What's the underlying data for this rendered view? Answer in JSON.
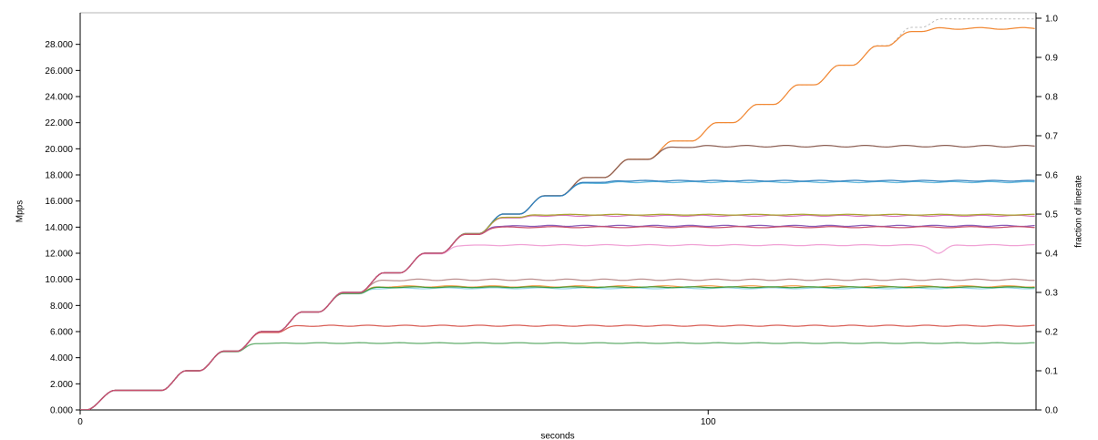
{
  "page": {
    "background": "#ffffff"
  },
  "axes": {
    "left_title": "Mpps",
    "bottom_title": "seconds",
    "right_title": "fraction of linerate"
  },
  "chart_data": {
    "type": "line",
    "title": "",
    "xlabel": "seconds",
    "ylabel_left": "Mpps",
    "ylabel_right": "fraction of linerate",
    "grid": false,
    "legend": "none",
    "x_range": [
      0,
      152.2
    ],
    "x_ticks": [
      {
        "v": 0,
        "label": "0"
      },
      {
        "v": 100,
        "label": "100"
      }
    ],
    "y_left_range": [
      0,
      30
    ],
    "y_left_ticks": [
      {
        "v": 0,
        "label": "0.000"
      },
      {
        "v": 2,
        "label": "2.000"
      },
      {
        "v": 4,
        "label": "4.000"
      },
      {
        "v": 6,
        "label": "6.000"
      },
      {
        "v": 8,
        "label": "8.000"
      },
      {
        "v": 10,
        "label": "10.000"
      },
      {
        "v": 12,
        "label": "12.000"
      },
      {
        "v": 14,
        "label": "14.000"
      },
      {
        "v": 16,
        "label": "16.000"
      },
      {
        "v": 18,
        "label": "18.000"
      },
      {
        "v": 20,
        "label": "20.000"
      },
      {
        "v": 22,
        "label": "22.000"
      },
      {
        "v": 24,
        "label": "24.000"
      },
      {
        "v": 26,
        "label": "26.000"
      },
      {
        "v": 28,
        "label": "28.000"
      }
    ],
    "y_right_range": [
      0,
      1
    ],
    "y_right_ticks": [
      {
        "v": 0.0,
        "label": "0.0"
      },
      {
        "v": 0.1,
        "label": "0.1"
      },
      {
        "v": 0.2,
        "label": "0.2"
      },
      {
        "v": 0.3,
        "label": "0.3"
      },
      {
        "v": 0.4,
        "label": "0.4"
      },
      {
        "v": 0.5,
        "label": "0.5"
      },
      {
        "v": 0.6,
        "label": "0.6"
      },
      {
        "v": 0.7,
        "label": "0.7"
      },
      {
        "v": 0.8,
        "label": "0.8"
      },
      {
        "v": 0.9,
        "label": "0.9"
      },
      {
        "v": 1.0,
        "label": "1.0"
      }
    ],
    "linerate_mpps": 30,
    "offered_load_steps": [
      [
        0,
        0
      ],
      [
        1,
        0
      ],
      [
        5.5,
        1.5
      ],
      [
        13,
        1.5
      ],
      [
        16.8,
        3.0
      ],
      [
        19,
        3.0
      ],
      [
        22.8,
        4.5
      ],
      [
        25,
        4.5
      ],
      [
        28.8,
        6.0
      ],
      [
        31.5,
        6.0
      ],
      [
        35.3,
        7.5
      ],
      [
        38,
        7.5
      ],
      [
        41.8,
        9.0
      ],
      [
        44.5,
        9.0
      ],
      [
        48.3,
        10.5
      ],
      [
        51,
        10.5
      ],
      [
        54.8,
        12.0
      ],
      [
        57.5,
        12.0
      ],
      [
        61.3,
        13.5
      ],
      [
        63.5,
        13.5
      ],
      [
        67.3,
        15.0
      ],
      [
        70,
        15.0
      ],
      [
        73.8,
        16.4
      ],
      [
        76.5,
        16.4
      ],
      [
        80.3,
        17.8
      ],
      [
        83.5,
        17.8
      ],
      [
        87.3,
        19.2
      ],
      [
        90.5,
        19.2
      ],
      [
        94.3,
        20.6
      ],
      [
        97.5,
        20.6
      ],
      [
        101.3,
        22.0
      ],
      [
        104,
        22.0
      ],
      [
        107.8,
        23.4
      ],
      [
        110.5,
        23.4
      ],
      [
        114.3,
        24.9
      ],
      [
        117,
        24.9
      ],
      [
        120.8,
        26.4
      ],
      [
        123,
        26.4
      ],
      [
        126.8,
        27.9
      ],
      [
        128.5,
        27.9
      ],
      [
        132.3,
        29.3
      ],
      [
        134,
        29.3
      ],
      [
        137,
        29.95
      ],
      [
        152.2,
        29.95
      ]
    ],
    "series": [
      {
        "name": "offered-load",
        "color": "#bdbdbd",
        "dash": true,
        "cap_mpps": null,
        "final_mpps": 29.95,
        "final_fraction": 0.998,
        "wobble": 0.0
      },
      {
        "name": "orange",
        "color": "#f28935",
        "dash": false,
        "cap_mpps": 29.35,
        "final_mpps": 29.3,
        "final_fraction": 0.978,
        "wobble": 0.13
      },
      {
        "name": "brown",
        "color": "#8d6055",
        "dash": false,
        "cap_mpps": 20.2,
        "final_mpps": 20.2,
        "final_fraction": 0.673,
        "wobble": 0.06
      },
      {
        "name": "light-blue",
        "color": "#64b9dd",
        "dash": false,
        "cap_mpps": 17.45,
        "final_mpps": 17.45,
        "final_fraction": 0.582,
        "wobble": 0.04
      },
      {
        "name": "blue",
        "color": "#2e7ebc",
        "dash": false,
        "cap_mpps": 17.55,
        "final_mpps": 17.55,
        "final_fraction": 0.585,
        "wobble": 0.03
      },
      {
        "name": "cyan",
        "color": "#93d4e4",
        "dash": false,
        "cap_mpps": 9.32,
        "final_mpps": 9.32,
        "final_fraction": 0.311,
        "wobble": 0.04
      },
      {
        "name": "light-orange",
        "color": "#f09e4a",
        "dash": false,
        "cap_mpps": 9.46,
        "final_mpps": 9.46,
        "final_fraction": 0.315,
        "wobble": 0.05
      },
      {
        "name": "green",
        "color": "#3f9c3f",
        "dash": false,
        "cap_mpps": 9.4,
        "final_mpps": 9.4,
        "final_fraction": 0.313,
        "wobble": 0.03
      },
      {
        "name": "rosybrown",
        "color": "#bc8f8f",
        "dash": false,
        "cap_mpps": 9.97,
        "final_mpps": 9.97,
        "final_fraction": 0.332,
        "wobble": 0.05
      },
      {
        "name": "orchid",
        "color": "#d878c0",
        "dash": false,
        "cap_mpps": 14.87,
        "final_mpps": 14.87,
        "final_fraction": 0.496,
        "wobble": 0.04
      },
      {
        "name": "olive",
        "color": "#aaa32e",
        "dash": false,
        "cap_mpps": 14.95,
        "final_mpps": 14.95,
        "final_fraction": 0.498,
        "wobble": 0.03
      },
      {
        "name": "pink",
        "color": "#f0a2d5",
        "dash": false,
        "cap_mpps": 12.62,
        "final_mpps": 12.62,
        "final_fraction": 0.421,
        "wobble": 0.04,
        "dip": {
          "t": 136.7,
          "depth": 0.62,
          "width": 1.5
        }
      },
      {
        "name": "medium-green",
        "color": "#62ad6c",
        "dash": false,
        "cap_mpps": 5.12,
        "final_mpps": 5.12,
        "final_fraction": 0.171,
        "wobble": 0.03
      },
      {
        "name": "red",
        "color": "#d95f57",
        "dash": false,
        "cap_mpps": 6.45,
        "final_mpps": 6.45,
        "final_fraction": 0.215,
        "wobble": 0.04
      },
      {
        "name": "purple",
        "color": "#8a5cb8",
        "dash": false,
        "cap_mpps": 14.1,
        "final_mpps": 14.1,
        "final_fraction": 0.47,
        "wobble": 0.04
      },
      {
        "name": "crimson",
        "color": "#c8506e",
        "dash": false,
        "cap_mpps": 14.0,
        "final_mpps": 14.0,
        "final_fraction": 0.467,
        "wobble": 0.04
      }
    ]
  }
}
